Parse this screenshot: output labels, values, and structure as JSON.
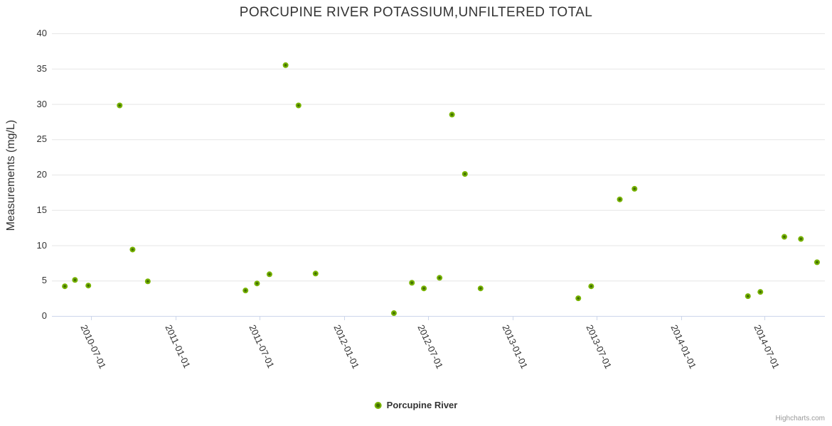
{
  "chart": {
    "credits_label": "Highcharts.com"
  },
  "chart_data": {
    "type": "scatter",
    "title": "PORCUPINE RIVER POTASSIUM,UNFILTERED TOTAL",
    "xlabel": "",
    "ylabel": "Measurements (mg/L)",
    "ylim": [
      0,
      40
    ],
    "y_ticks": [
      0,
      5,
      10,
      15,
      20,
      25,
      30,
      35,
      40
    ],
    "x_range": [
      "2010-04-07",
      "2014-11-09"
    ],
    "x_ticks": [
      "2010-07-01",
      "2011-01-01",
      "2011-07-01",
      "2012-01-01",
      "2012-07-01",
      "2013-01-01",
      "2013-07-01",
      "2014-01-01",
      "2014-07-01"
    ],
    "grid": "horizontal-only",
    "legend": {
      "position": "bottom-center",
      "items": [
        {
          "name": "Porcupine River",
          "color": "#77b300"
        }
      ]
    },
    "colors": {
      "marker_outer": "#77b300",
      "marker_inner": "#426f00",
      "gridline": "#e6e6e6",
      "axis_line": "#ccd6eb",
      "label_text": "#333333",
      "credits_text": "#999999"
    },
    "series": [
      {
        "name": "Porcupine River",
        "color": "#77b300",
        "points": [
          {
            "date": "2010-05-05",
            "value": 4.2
          },
          {
            "date": "2010-05-27",
            "value": 5.1
          },
          {
            "date": "2010-06-25",
            "value": 4.3
          },
          {
            "date": "2010-09-01",
            "value": 29.8
          },
          {
            "date": "2010-09-29",
            "value": 9.4
          },
          {
            "date": "2010-11-01",
            "value": 4.9
          },
          {
            "date": "2011-06-01",
            "value": 3.6
          },
          {
            "date": "2011-06-26",
            "value": 4.6
          },
          {
            "date": "2011-07-23",
            "value": 5.9
          },
          {
            "date": "2011-08-27",
            "value": 35.5
          },
          {
            "date": "2011-09-24",
            "value": 29.8
          },
          {
            "date": "2011-10-31",
            "value": 6.0
          },
          {
            "date": "2012-04-18",
            "value": 0.4
          },
          {
            "date": "2012-05-27",
            "value": 4.7
          },
          {
            "date": "2012-06-22",
            "value": 3.9
          },
          {
            "date": "2012-07-26",
            "value": 5.4
          },
          {
            "date": "2012-08-22",
            "value": 28.5
          },
          {
            "date": "2012-09-19",
            "value": 20.1
          },
          {
            "date": "2012-10-23",
            "value": 3.9
          },
          {
            "date": "2013-05-23",
            "value": 2.5
          },
          {
            "date": "2013-06-20",
            "value": 4.2
          },
          {
            "date": "2013-08-21",
            "value": 16.5
          },
          {
            "date": "2013-09-22",
            "value": 18.0
          },
          {
            "date": "2014-05-26",
            "value": 2.8
          },
          {
            "date": "2014-06-22",
            "value": 3.4
          },
          {
            "date": "2014-08-13",
            "value": 11.2
          },
          {
            "date": "2014-09-18",
            "value": 10.9
          },
          {
            "date": "2014-10-23",
            "value": 7.6
          }
        ]
      }
    ]
  }
}
